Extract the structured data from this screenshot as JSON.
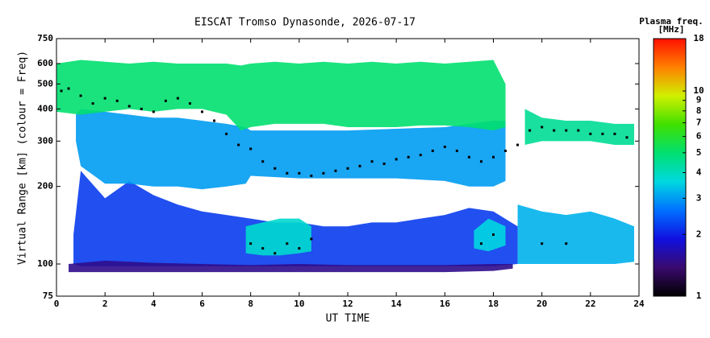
{
  "chart_data": {
    "type": "ionogram",
    "title": "EISCAT Tromso Dynasonde, 2026-07-17",
    "xlabel": "UT TIME",
    "ylabel": "Virtual Range [km] (colour = Freq)",
    "xlim": [
      0,
      24
    ],
    "xticks": [
      0,
      2,
      4,
      6,
      8,
      10,
      12,
      14,
      16,
      18,
      20,
      22,
      24
    ],
    "ylim": [
      75,
      750
    ],
    "ylog": true,
    "yticks": [
      75,
      100,
      200,
      300,
      400,
      500,
      600,
      750
    ],
    "colorbar": {
      "title": "Plasma freq.",
      "unit": "[MHz]",
      "clim": [
        1,
        18
      ],
      "log": true,
      "ticks": [
        1,
        2,
        3,
        4,
        5,
        6,
        7,
        8,
        9,
        10,
        18
      ],
      "colors": [
        "#000000",
        "#3a0a6e",
        "#1010e0",
        "#0070ff",
        "#00d8e0",
        "#00e070",
        "#40e000",
        "#d0f000",
        "#ff8000",
        "#ff1000"
      ]
    },
    "layers": [
      {
        "freq": 2.2,
        "x": [
          0.7,
          1,
          2,
          3,
          4,
          5,
          6,
          7,
          8,
          9,
          10,
          11,
          12,
          13,
          14,
          15,
          16,
          17,
          18,
          19
        ],
        "low": [
          100,
          98,
          98,
          98,
          98,
          98,
          98,
          98,
          98,
          98,
          98,
          98,
          98,
          98,
          98,
          98,
          98,
          98,
          98,
          100
        ],
        "high": [
          130,
          230,
          180,
          210,
          185,
          170,
          160,
          155,
          150,
          145,
          145,
          140,
          140,
          145,
          145,
          150,
          155,
          165,
          160,
          140
        ]
      },
      {
        "freq": 1.5,
        "x": [
          0.5,
          2,
          4,
          6,
          8,
          10,
          12,
          14,
          16,
          18,
          18.8
        ],
        "low": [
          93,
          93,
          93,
          93,
          93,
          93,
          93,
          93,
          93,
          94,
          96
        ],
        "high": [
          100,
          103,
          101,
          100,
          99,
          100,
          99,
          99,
          99,
          100,
          100
        ]
      },
      {
        "freq": 3,
        "x": [
          0.8,
          1,
          2,
          3,
          4,
          5,
          6,
          7,
          7.8,
          8,
          10,
          12,
          14,
          16,
          17,
          18,
          18.5
        ],
        "low": [
          300,
          240,
          205,
          205,
          200,
          200,
          195,
          200,
          205,
          220,
          215,
          215,
          215,
          210,
          200,
          200,
          210
        ],
        "high": [
          380,
          400,
          390,
          380,
          370,
          370,
          360,
          350,
          340,
          330,
          330,
          330,
          335,
          340,
          350,
          360,
          360
        ]
      },
      {
        "freq": 5,
        "x": [
          0,
          1,
          2,
          3,
          4,
          5,
          6,
          7,
          7.6,
          8,
          9,
          10,
          11,
          12,
          13,
          14,
          15,
          16,
          17,
          18,
          18.5
        ],
        "low": [
          390,
          380,
          390,
          400,
          390,
          400,
          400,
          380,
          330,
          340,
          350,
          350,
          350,
          340,
          340,
          340,
          345,
          345,
          340,
          330,
          340
        ],
        "high": [
          600,
          620,
          610,
          600,
          610,
          600,
          600,
          600,
          590,
          600,
          610,
          600,
          610,
          600,
          610,
          600,
          610,
          600,
          610,
          620,
          500
        ]
      },
      {
        "freq": 3.8,
        "x": [
          7.8,
          8.5,
          9.2,
          10,
          10.5
        ],
        "low": [
          110,
          108,
          108,
          110,
          112
        ],
        "high": [
          140,
          145,
          150,
          150,
          140
        ]
      },
      {
        "freq": 3.6,
        "x": [
          17.2,
          17.8,
          18.5
        ],
        "low": [
          115,
          112,
          118
        ],
        "high": [
          135,
          150,
          140
        ]
      },
      {
        "freq": 3.2,
        "x": [
          19,
          20,
          21,
          22,
          23,
          23.8
        ],
        "low": [
          100,
          100,
          100,
          100,
          100,
          102
        ],
        "high": [
          170,
          160,
          155,
          160,
          150,
          140
        ]
      },
      {
        "freq": 4.5,
        "x": [
          19.3,
          20,
          21,
          22,
          23,
          23.8
        ],
        "low": [
          290,
          300,
          300,
          300,
          290,
          290
        ],
        "high": [
          400,
          370,
          360,
          360,
          350,
          350
        ]
      }
    ],
    "traces": [
      {
        "x": [
          0.2,
          0.5,
          1,
          1.5,
          2,
          2.5,
          3,
          3.5,
          4,
          4.5,
          5,
          5.5,
          6,
          6.5,
          7,
          7.5,
          8,
          8.5,
          9,
          9.5,
          10,
          10.5,
          11,
          11.5,
          12,
          12.5,
          13,
          13.5,
          14,
          14.5,
          15,
          15.5,
          16,
          16.5,
          17,
          17.5,
          18,
          18.5,
          19,
          19.5,
          20,
          20.5,
          21,
          21.5,
          22,
          22.5,
          23,
          23.5
        ],
        "y": [
          470,
          480,
          450,
          420,
          440,
          430,
          410,
          400,
          390,
          430,
          440,
          420,
          390,
          360,
          320,
          290,
          280,
          250,
          235,
          225,
          225,
          220,
          225,
          230,
          235,
          240,
          250,
          245,
          255,
          260,
          265,
          275,
          285,
          275,
          260,
          250,
          260,
          275,
          290,
          330,
          340,
          330,
          330,
          330,
          320,
          320,
          320,
          310
        ]
      },
      {
        "x": [
          8,
          8.5,
          9,
          9.5,
          10,
          10.5,
          17.5,
          18,
          20,
          21
        ],
        "y": [
          120,
          115,
          110,
          120,
          115,
          125,
          120,
          130,
          120,
          120
        ]
      }
    ]
  }
}
